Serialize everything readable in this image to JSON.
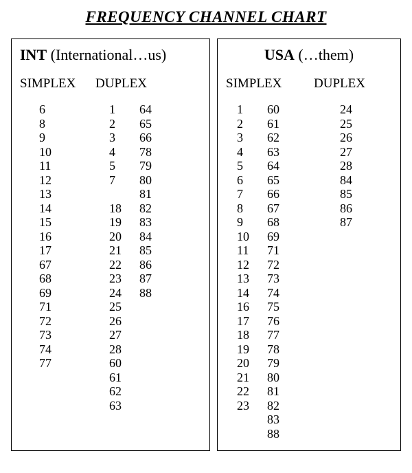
{
  "title": "FREQUENCY CHANNEL CHART",
  "colors": {
    "background": "#ffffff",
    "text": "#000000",
    "border": "#000000"
  },
  "typography": {
    "family": "Times New Roman",
    "title_size_pt": 18,
    "header_size_pt": 17,
    "colhead_size_pt": 15,
    "body_size_pt": 14
  },
  "int": {
    "header_bold": "INT",
    "header_rest": " (International…us)",
    "col_simplex": "SIMPLEX",
    "col_duplex": "DUPLEX",
    "simplex": [
      "6",
      "8",
      "9",
      "10",
      "11",
      "12",
      "13",
      "14",
      "15",
      "16",
      "17",
      "67",
      "68",
      "69",
      "71",
      "72",
      "73",
      "74",
      "77"
    ],
    "duplex_a": [
      "1",
      "2",
      "3",
      "4",
      "5",
      "7",
      "",
      "18",
      "19",
      "20",
      "21",
      "22",
      "23",
      "24",
      "25",
      "26",
      "27",
      "28",
      "60",
      "61",
      "62",
      "63"
    ],
    "duplex_b": [
      "64",
      "65",
      "66",
      "78",
      "79",
      "80",
      "81",
      "82",
      "83",
      "84",
      "85",
      "86",
      "87",
      "88"
    ]
  },
  "usa": {
    "header_bold": "USA",
    "header_rest": "  (…them)",
    "col_simplex": "SIMPLEX",
    "col_duplex": "DUPLEX",
    "simplex_a": [
      "1",
      "2",
      "3",
      "4",
      "5",
      "6",
      "7",
      "8",
      "9",
      "10",
      "11",
      "12",
      "13",
      "14",
      "16",
      "17",
      "18",
      "19",
      "20",
      "21",
      "22",
      "23"
    ],
    "simplex_b": [
      "60",
      "61",
      "62",
      "63",
      "64",
      "65",
      "66",
      "67",
      "68",
      "69",
      "71",
      "72",
      "73",
      "74",
      "75",
      "76",
      "77",
      "78",
      "79",
      "80",
      "81",
      "82",
      "83",
      "88"
    ],
    "duplex": [
      "24",
      "25",
      "26",
      "27",
      "28",
      "84",
      "85",
      "86",
      "87"
    ]
  }
}
